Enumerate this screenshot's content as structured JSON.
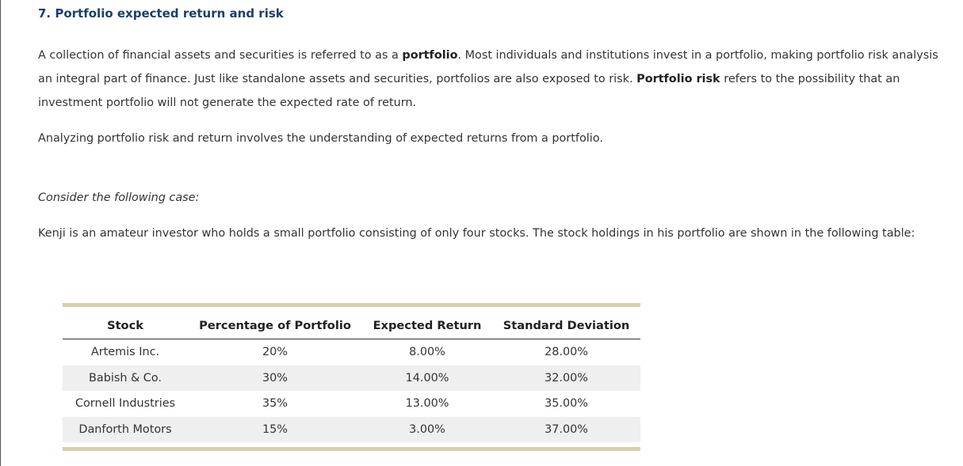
{
  "heading": "7. Portfolio expected return and risk",
  "intro": {
    "t1": "A collection of financial assets and securities is referred to as a ",
    "b1": "portfolio",
    "t2": ". Most individuals and institutions invest in a portfolio, making portfolio risk analysis an integral part of finance. Just like standalone assets and securities, portfolios are also exposed to risk. ",
    "b2": "Portfolio risk",
    "t3": " refers to the possibility that an investment portfolio will not generate the expected rate of return."
  },
  "analyzing": "Analyzing portfolio risk and return involves the understanding of expected returns from a portfolio.",
  "consider": "Consider the following case:",
  "case_text": "Kenji is an amateur investor who holds a small portfolio consisting of only four stocks. The stock holdings in his portfolio are shown in the following table:",
  "table": {
    "headers": [
      "Stock",
      "Percentage of Portfolio",
      "Expected Return",
      "Standard Deviation"
    ],
    "rows": [
      [
        "Artemis Inc.",
        "20%",
        "8.00%",
        "28.00%"
      ],
      [
        "Babish & Co.",
        "30%",
        "14.00%",
        "32.00%"
      ],
      [
        "Cornell Industries",
        "35%",
        "13.00%",
        "35.00%"
      ],
      [
        "Danforth Motors",
        "15%",
        "3.00%",
        "37.00%"
      ]
    ]
  }
}
